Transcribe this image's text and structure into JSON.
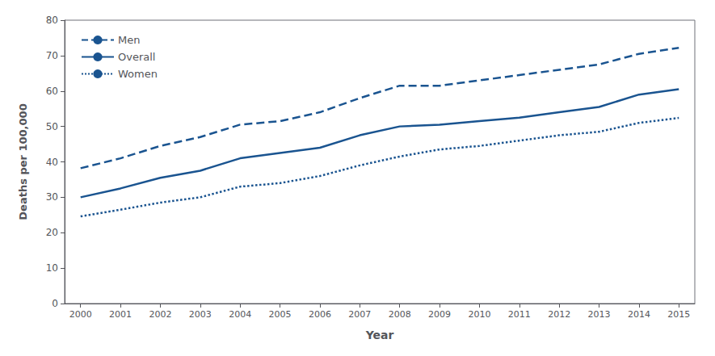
{
  "chart_data": {
    "type": "line",
    "xlabel": "Year",
    "ylabel": "Deaths per 100,000",
    "x": [
      2000,
      2001,
      2002,
      2003,
      2004,
      2005,
      2006,
      2007,
      2008,
      2009,
      2010,
      2011,
      2012,
      2013,
      2014,
      2015
    ],
    "series": [
      {
        "name": "Men",
        "color": "#1a5490",
        "line_style": "dashed",
        "values": [
          38.2,
          41.0,
          44.5,
          47.0,
          50.5,
          51.5,
          54.0,
          58.0,
          61.5,
          61.5,
          63.0,
          64.5,
          66.0,
          67.5,
          70.5,
          72.2
        ]
      },
      {
        "name": "Overall",
        "color": "#1a5490",
        "line_style": "solid",
        "values": [
          30.0,
          32.5,
          35.5,
          37.5,
          41.0,
          42.5,
          44.0,
          47.5,
          50.0,
          50.5,
          51.5,
          52.5,
          54.0,
          55.5,
          59.0,
          60.5
        ]
      },
      {
        "name": "Women",
        "color": "#1a5490",
        "line_style": "dotted",
        "values": [
          24.6,
          26.5,
          28.5,
          30.0,
          33.0,
          34.0,
          36.0,
          39.0,
          41.5,
          43.5,
          44.5,
          46.0,
          47.5,
          48.5,
          51.0,
          52.4
        ]
      }
    ],
    "xlim": [
      1999.6,
      2015.4
    ],
    "xticks": [
      2000,
      2001,
      2002,
      2003,
      2004,
      2005,
      2006,
      2007,
      2008,
      2009,
      2010,
      2011,
      2012,
      2013,
      2014,
      2015
    ],
    "ylim": [
      0,
      80
    ],
    "yticks": [
      0,
      10,
      20,
      30,
      40,
      50,
      60,
      70,
      80
    ],
    "grid": false,
    "legend": "upper left"
  }
}
